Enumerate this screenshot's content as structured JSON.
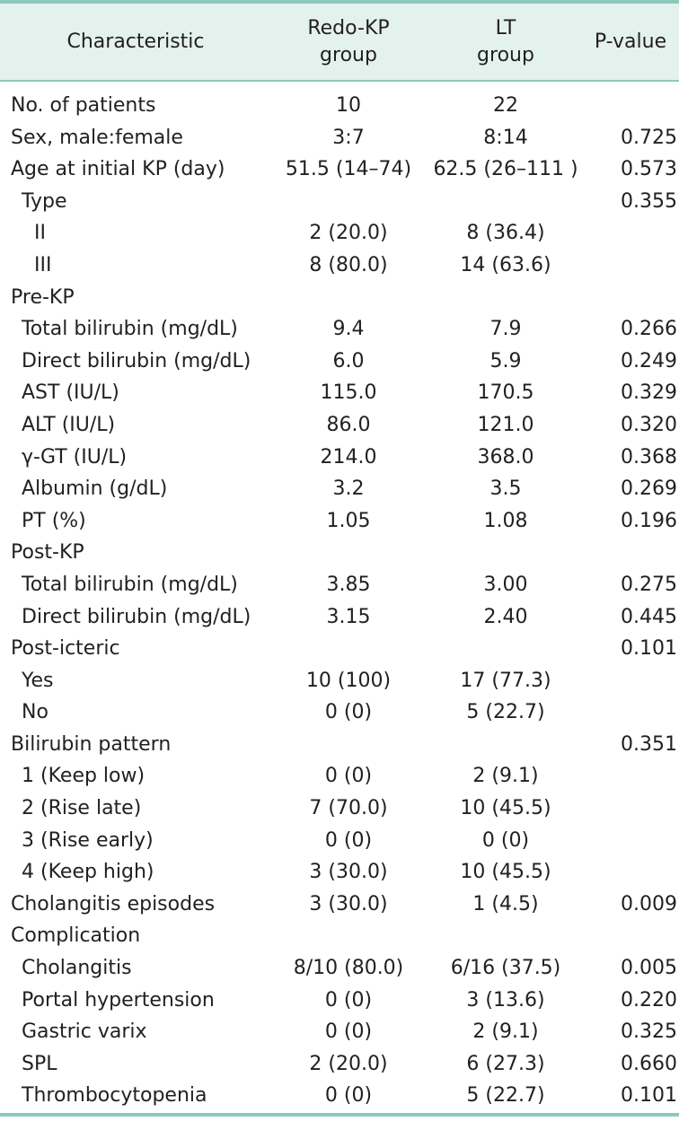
{
  "table": {
    "headers": {
      "characteristic": "Characteristic",
      "redo_kp": "Redo-KP\ngroup",
      "lt": "LT\ngroup",
      "p_value": "P-value"
    },
    "rows": [
      {
        "label": "No. of patients",
        "redo": "10",
        "lt": "22",
        "p": "",
        "level": 0
      },
      {
        "label": "Sex, male:female",
        "redo": "3:7",
        "lt": "8:14",
        "p": "0.725",
        "level": 0
      },
      {
        "label": "Age at initial KP (day)",
        "redo": "51.5 (14–74)",
        "lt": "62.5 (26–111 )",
        "p": "0.573",
        "level": 0
      },
      {
        "label": "Type",
        "redo": "",
        "lt": "",
        "p": "0.355",
        "level": 1
      },
      {
        "label": "II",
        "redo": "2 (20.0)",
        "lt": "8 (36.4)",
        "p": "",
        "level": 2
      },
      {
        "label": "III",
        "redo": "8 (80.0)",
        "lt": "14 (63.6)",
        "p": "",
        "level": 2
      },
      {
        "label": "Pre-KP",
        "redo": "",
        "lt": "",
        "p": "",
        "level": 0
      },
      {
        "label": "Total bilirubin (mg/dL)",
        "redo": "9.4",
        "lt": "7.9",
        "p": "0.266",
        "level": 1
      },
      {
        "label": "Direct bilirubin (mg/dL)",
        "redo": "6.0",
        "lt": "5.9",
        "p": "0.249",
        "level": 1
      },
      {
        "label": "AST (IU/L)",
        "redo": "115.0",
        "lt": "170.5",
        "p": "0.329",
        "level": 1
      },
      {
        "label": "ALT (IU/L)",
        "redo": "86.0",
        "lt": "121.0",
        "p": "0.320",
        "level": 1
      },
      {
        "label": "γ-GT (IU/L)",
        "redo": "214.0",
        "lt": "368.0",
        "p": "0.368",
        "level": 1
      },
      {
        "label": "Albumin (g/dL)",
        "redo": "3.2",
        "lt": "3.5",
        "p": "0.269",
        "level": 1
      },
      {
        "label": "PT (%)",
        "redo": "1.05",
        "lt": "1.08",
        "p": "0.196",
        "level": 1
      },
      {
        "label": "Post-KP",
        "redo": "",
        "lt": "",
        "p": "",
        "level": 0
      },
      {
        "label": "Total bilirubin (mg/dL)",
        "redo": "3.85",
        "lt": "3.00",
        "p": "0.275",
        "level": 1
      },
      {
        "label": "Direct bilirubin (mg/dL)",
        "redo": "3.15",
        "lt": "2.40",
        "p": "0.445",
        "level": 1
      },
      {
        "label": "Post-icteric",
        "redo": "",
        "lt": "",
        "p": "0.101",
        "level": 0
      },
      {
        "label": "Yes",
        "redo": "10 (100)",
        "lt": "17 (77.3)",
        "p": "",
        "level": 1
      },
      {
        "label": "No",
        "redo": "0 (0)",
        "lt": "5 (22.7)",
        "p": "",
        "level": 1
      },
      {
        "label": "Bilirubin pattern",
        "redo": "",
        "lt": "",
        "p": "0.351",
        "level": 0
      },
      {
        "label": "1 (Keep low)",
        "redo": "0 (0)",
        "lt": "2 (9.1)",
        "p": "",
        "level": 1
      },
      {
        "label": "2 (Rise late)",
        "redo": "7 (70.0)",
        "lt": "10 (45.5)",
        "p": "",
        "level": 1
      },
      {
        "label": "3 (Rise early)",
        "redo": "0 (0)",
        "lt": "0 (0)",
        "p": "",
        "level": 1
      },
      {
        "label": "4 (Keep high)",
        "redo": "3 (30.0)",
        "lt": "10 (45.5)",
        "p": "",
        "level": 1
      },
      {
        "label": "Cholangitis episodes",
        "redo": "3 (30.0)",
        "lt": "1 (4.5)",
        "p": "0.009",
        "level": 0
      },
      {
        "label": "Complication",
        "redo": "",
        "lt": "",
        "p": "",
        "level": 0
      },
      {
        "label": "Cholangitis",
        "redo": "8/10 (80.0)",
        "lt": "6/16 (37.5)",
        "p": "0.005",
        "level": 1
      },
      {
        "label": "Portal hypertension",
        "redo": "0 (0)",
        "lt": "3 (13.6)",
        "p": "0.220",
        "level": 1
      },
      {
        "label": "Gastric varix",
        "redo": "0 (0)",
        "lt": "2 (9.1)",
        "p": "0.325",
        "level": 1
      },
      {
        "label": "SPL",
        "redo": "2 (20.0)",
        "lt": "6 (27.3)",
        "p": "0.660",
        "level": 1
      },
      {
        "label": "Thrombocytopenia",
        "redo": "0 (0)",
        "lt": "5 (22.7)",
        "p": "0.101",
        "level": 1
      }
    ]
  }
}
